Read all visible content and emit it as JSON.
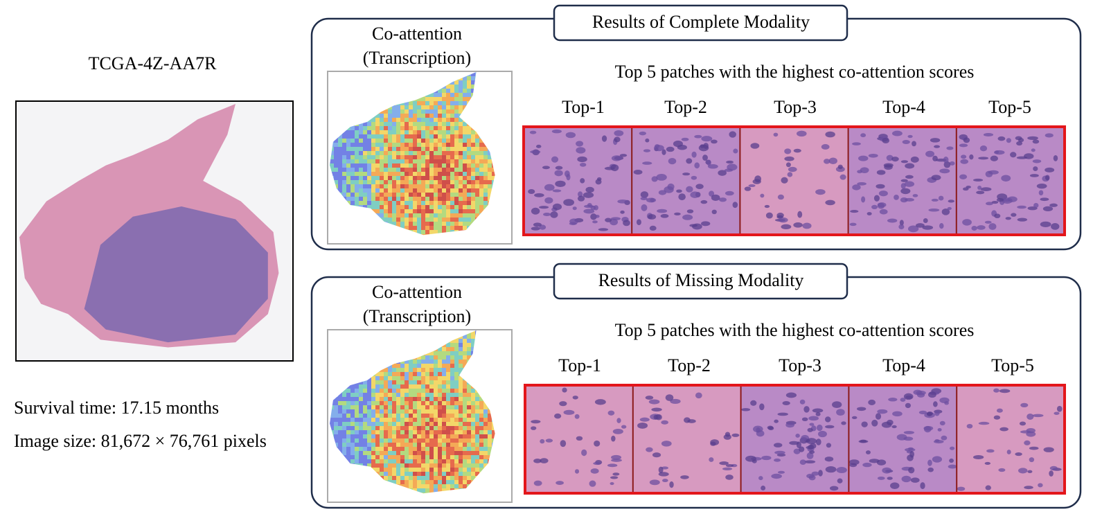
{
  "slide": {
    "case_id": "TCGA-4Z-AA7R",
    "survival": "Survival time: 17.15 months",
    "image_size": "Image size: 81,672 × 76,761 pixels"
  },
  "panels": [
    {
      "title": "Results of Complete Modality",
      "heatmap_label": [
        "Co-attention",
        "(Transcription)"
      ],
      "patches_caption": "Top 5 patches with the highest co-attention scores",
      "patch_labels": [
        "Top-1",
        "Top-2",
        "Top-3",
        "Top-4",
        "Top-5"
      ]
    },
    {
      "title": "Results of Missing Modality",
      "heatmap_label": [
        "Co-attention",
        "(Transcription)"
      ],
      "patches_caption": "Top 5 patches with the highest co-attention scores",
      "patch_labels": [
        "Top-1",
        "Top-2",
        "Top-3",
        "Top-4",
        "Top-5"
      ]
    }
  ]
}
